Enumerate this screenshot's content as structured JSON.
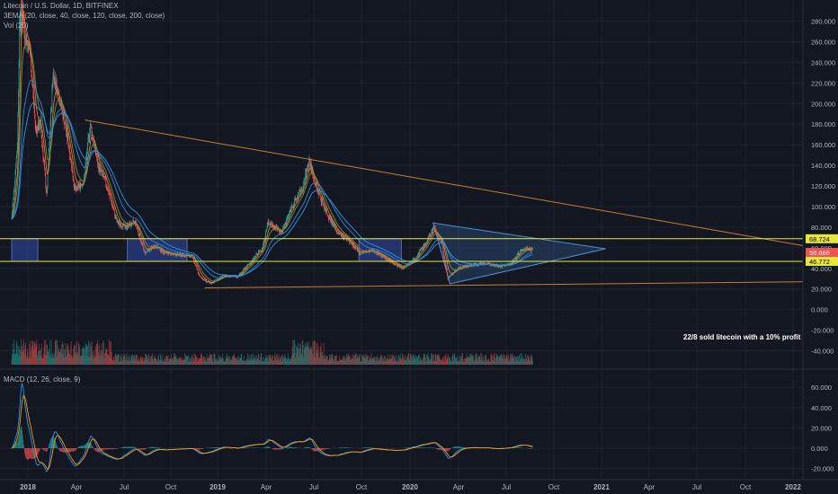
{
  "header": {
    "title": "Litecoin / U.S. Dollar, 1D, BITFINEX",
    "ema": "3EMA (20, close, 40, close, 120, close, 200, close)",
    "vol": "Vol (20)",
    "macd": "MACD (12, 26, close, 9)"
  },
  "annotation": "22/8 sold litecoin with a 10% profit",
  "colors": {
    "background": "#131722",
    "grid": "#1e222d",
    "up": "#26a69a",
    "down": "#ef5350",
    "trend": "#c77e2f",
    "level": "#e8e83a",
    "zone": "#2a3f86",
    "triangle": "#4a8fd4"
  },
  "chart_data": {
    "type": "candlestick",
    "x_ticks": [
      "2018",
      "Apr",
      "Jul",
      "Oct",
      "2019",
      "Apr",
      "Jul",
      "Oct",
      "2020",
      "Apr",
      "Jul",
      "Oct",
      "2021",
      "Apr",
      "Jul",
      "Oct",
      "2022"
    ],
    "price_axis": {
      "ticks": [
        "280.000",
        "260.000",
        "240.000",
        "220.000",
        "200.000",
        "180.000",
        "160.000",
        "140.000",
        "120.000",
        "100.000",
        "80.000",
        "60.000",
        "40.000",
        "20.000",
        "0.000",
        "-20.000",
        "-40.000"
      ],
      "range": [
        -50,
        290
      ]
    },
    "price_labels": [
      {
        "value": "68.724",
        "color": "#e8e83a"
      },
      {
        "value": "58.666",
        "color": "#ef5350"
      },
      {
        "value": "20:24:43",
        "color": "#ef5350"
      },
      {
        "value": "46.772",
        "color": "#e8e83a"
      }
    ],
    "levels": [
      68.724,
      46.772
    ],
    "price_path": [
      [
        "2017-12-01",
        88
      ],
      [
        "2017-12-12",
        160
      ],
      [
        "2017-12-19",
        360
      ],
      [
        "2017-12-25",
        270
      ],
      [
        "2018-01-05",
        250
      ],
      [
        "2018-01-16",
        175
      ],
      [
        "2018-01-25",
        180
      ],
      [
        "2018-02-06",
        110
      ],
      [
        "2018-02-18",
        230
      ],
      [
        "2018-03-05",
        200
      ],
      [
        "2018-03-20",
        160
      ],
      [
        "2018-04-01",
        115
      ],
      [
        "2018-04-18",
        125
      ],
      [
        "2018-04-30",
        180
      ],
      [
        "2018-05-15",
        140
      ],
      [
        "2018-06-01",
        120
      ],
      [
        "2018-06-20",
        85
      ],
      [
        "2018-07-05",
        80
      ],
      [
        "2018-07-25",
        85
      ],
      [
        "2018-08-12",
        55
      ],
      [
        "2018-09-01",
        62
      ],
      [
        "2018-09-20",
        55
      ],
      [
        "2018-10-15",
        53
      ],
      [
        "2018-11-10",
        52
      ],
      [
        "2018-11-25",
        32
      ],
      [
        "2018-12-15",
        25
      ],
      [
        "2019-01-10",
        33
      ],
      [
        "2019-02-05",
        32
      ],
      [
        "2019-03-01",
        45
      ],
      [
        "2019-03-25",
        60
      ],
      [
        "2019-04-05",
        85
      ],
      [
        "2019-05-01",
        75
      ],
      [
        "2019-05-20",
        100
      ],
      [
        "2019-06-10",
        118
      ],
      [
        "2019-06-22",
        145
      ],
      [
        "2019-07-05",
        120
      ],
      [
        "2019-07-25",
        95
      ],
      [
        "2019-08-15",
        75
      ],
      [
        "2019-09-05",
        68
      ],
      [
        "2019-09-25",
        55
      ],
      [
        "2019-10-25",
        57
      ],
      [
        "2019-11-20",
        48
      ],
      [
        "2019-12-18",
        40
      ],
      [
        "2020-01-10",
        50
      ],
      [
        "2020-02-01",
        65
      ],
      [
        "2020-02-15",
        80
      ],
      [
        "2020-03-01",
        65
      ],
      [
        "2020-03-13",
        30
      ],
      [
        "2020-04-01",
        40
      ],
      [
        "2020-04-25",
        43
      ],
      [
        "2020-05-20",
        45
      ],
      [
        "2020-06-20",
        42
      ],
      [
        "2020-07-10",
        44
      ],
      [
        "2020-07-28",
        56
      ],
      [
        "2020-08-10",
        60
      ],
      [
        "2020-08-22",
        58.666
      ]
    ],
    "ema_period": [
      20,
      40,
      120,
      200
    ],
    "trendlines": [
      {
        "from": [
          "2018-04-20",
          184
        ],
        "to": [
          "2022-01-20",
          62
        ],
        "color": "#c77e2f"
      },
      {
        "from": [
          "2018-12-05",
          21
        ],
        "to": [
          "2022-01-20",
          27
        ],
        "color": "#c77e2f"
      }
    ],
    "triangle": [
      [
        "2020-02-14",
        84
      ],
      [
        "2021-01-08",
        59
      ],
      [
        "2020-03-17",
        25
      ]
    ],
    "zones": [
      {
        "from": "2017-12-01",
        "to": "2018-01-20"
      },
      {
        "from": "2018-07-10",
        "to": "2018-11-01"
      },
      {
        "from": "2019-09-25",
        "to": "2019-12-15"
      }
    ],
    "macd_axis": {
      "ticks": [
        "60.000",
        "40.000",
        "20.000",
        "0.000",
        "-20.000"
      ],
      "range": [
        -30,
        72
      ]
    }
  }
}
